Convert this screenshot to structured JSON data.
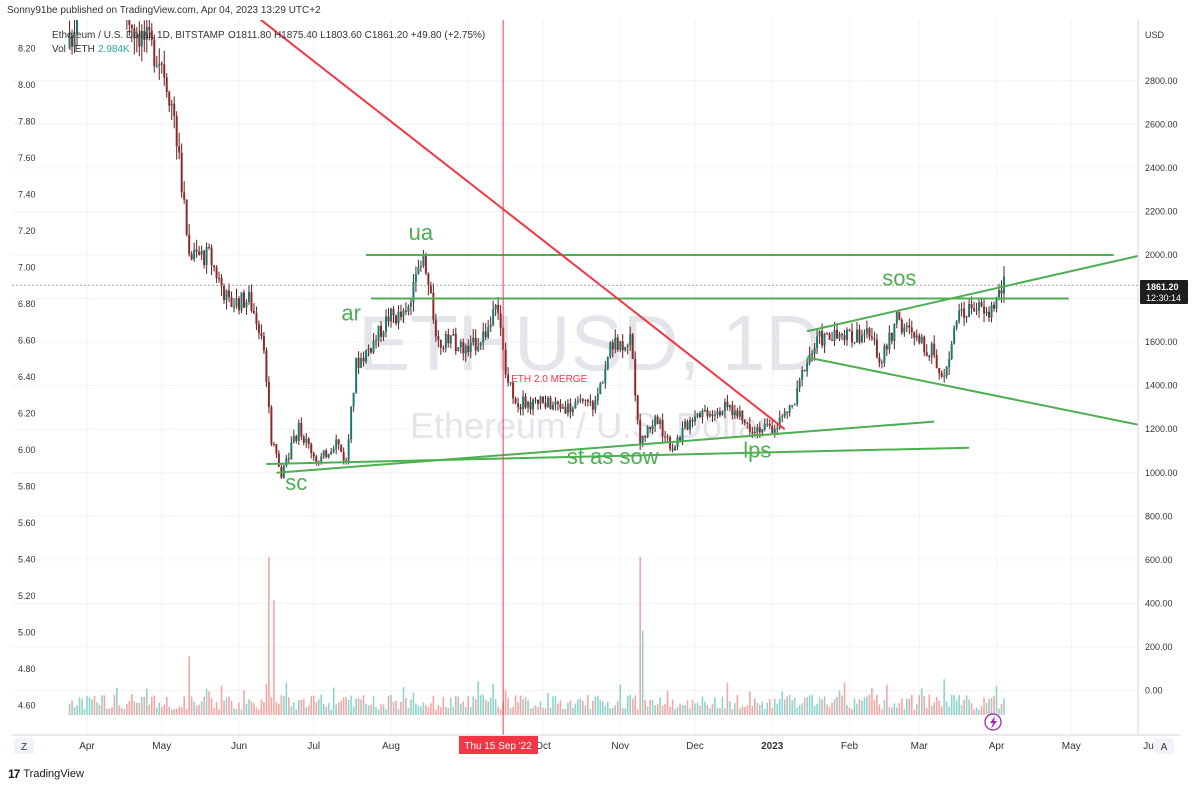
{
  "header": {
    "publisher_line": "Sonny91be published on TradingView.com, Apr 04, 2023 13:29 UTC+2"
  },
  "legend": {
    "symbol": "Ethereum / U.S. Dollar, 1D, BITSTAMP",
    "ohlc": "O1811.80  H1875.40  L1803.60  C1861.20  +49.80 (+2.75%)",
    "volume_label": "Vol · ETH",
    "volume_value": "2.984K"
  },
  "watermark": {
    "ticker": "ETHUSD, 1D",
    "name": "Ethereum / U.S. Dollar"
  },
  "colors": {
    "up": "#26a69a",
    "down": "#ef5350",
    "candle_body": "#8b2a2a",
    "annotation_green": "#4caf50",
    "trendline_red": "#f23645",
    "marker_red": "#f23645"
  },
  "price_label": {
    "price": "1861.20",
    "countdown": "12:30:14"
  },
  "crosshair_date": "Thu 15 Sep '22",
  "footer": {
    "brand": "TradingView",
    "zoom_left": "Z",
    "zoom_right": "A"
  },
  "chart_data": {
    "type": "candlestick",
    "currency_label": "USD",
    "right_axis_ticks": [
      2800,
      2600,
      2400,
      2200,
      2000,
      1800,
      1600,
      1400,
      1200,
      1000,
      800,
      600,
      400,
      200,
      0
    ],
    "right_axis_labels": [
      "2800.00",
      "2600.00",
      "2400.00",
      "2200.00",
      "2000.00",
      "1800.00",
      "1600.00",
      "1400.00",
      "1200.00",
      "1000.00",
      "800.00",
      "600.00",
      "400.00",
      "200.00",
      "0.00"
    ],
    "left_axis_labels": [
      "8.20",
      "8.00",
      "7.80",
      "7.60",
      "7.40",
      "7.20",
      "7.00",
      "6.80",
      "6.60",
      "6.40",
      "6.20",
      "6.00",
      "5.80",
      "5.60",
      "5.40",
      "5.20",
      "5.00",
      "4.80",
      "4.60"
    ],
    "left_axis_values": [
      8.2,
      8.0,
      7.8,
      7.6,
      7.4,
      7.2,
      7.0,
      6.8,
      6.6,
      6.4,
      6.2,
      6.0,
      5.8,
      5.6,
      5.4,
      5.2,
      5.0,
      4.8,
      4.6
    ],
    "x_axis_labels": [
      "Apr",
      "May",
      "Jun",
      "Jul",
      "Aug",
      "Sep",
      "Oct",
      "Nov",
      "Dec",
      "2023",
      "Feb",
      "Mar",
      "Apr",
      "May",
      "Ju"
    ],
    "x_axis_dates": [
      "2022-04-01",
      "2022-05-01",
      "2022-06-01",
      "2022-07-01",
      "2022-08-01",
      "2022-09-01",
      "2022-10-01",
      "2022-11-01",
      "2022-12-01",
      "2023-01-01",
      "2023-02-01",
      "2023-03-01",
      "2023-04-01",
      "2023-05-01",
      "2023-06-01"
    ],
    "price_path": [
      [
        "2022-03-25",
        2950
      ],
      [
        "2022-04-03",
        3500
      ],
      [
        "2022-04-10",
        3250
      ],
      [
        "2022-04-20",
        3050
      ],
      [
        "2022-05-01",
        2900
      ],
      [
        "2022-05-06",
        2650
      ],
      [
        "2022-05-12",
        2000
      ],
      [
        "2022-05-20",
        2000
      ],
      [
        "2022-05-28",
        1780
      ],
      [
        "2022-06-05",
        1800
      ],
      [
        "2022-06-10",
        1650
      ],
      [
        "2022-06-14",
        1150
      ],
      [
        "2022-06-18",
        1000
      ],
      [
        "2022-06-25",
        1200
      ],
      [
        "2022-07-03",
        1050
      ],
      [
        "2022-07-10",
        1150
      ],
      [
        "2022-07-14",
        1050
      ],
      [
        "2022-07-18",
        1500
      ],
      [
        "2022-07-25",
        1600
      ],
      [
        "2022-07-31",
        1720
      ],
      [
        "2022-08-07",
        1720
      ],
      [
        "2022-08-14",
        1980
      ],
      [
        "2022-08-20",
        1600
      ],
      [
        "2022-08-26",
        1600
      ],
      [
        "2022-09-01",
        1560
      ],
      [
        "2022-09-08",
        1650
      ],
      [
        "2022-09-13",
        1750
      ],
      [
        "2022-09-16",
        1450
      ],
      [
        "2022-09-21",
        1320
      ],
      [
        "2022-10-01",
        1320
      ],
      [
        "2022-10-13",
        1300
      ],
      [
        "2022-10-22",
        1320
      ],
      [
        "2022-10-28",
        1570
      ],
      [
        "2022-11-05",
        1620
      ],
      [
        "2022-11-09",
        1150
      ],
      [
        "2022-11-15",
        1250
      ],
      [
        "2022-11-22",
        1120
      ],
      [
        "2022-12-01",
        1280
      ],
      [
        "2022-12-15",
        1300
      ],
      [
        "2022-12-22",
        1220
      ],
      [
        "2023-01-01",
        1200
      ],
      [
        "2023-01-10",
        1320
      ],
      [
        "2023-01-14",
        1500
      ],
      [
        "2023-01-20",
        1620
      ],
      [
        "2023-02-01",
        1620
      ],
      [
        "2023-02-07",
        1650
      ],
      [
        "2023-02-14",
        1520
      ],
      [
        "2023-02-20",
        1700
      ],
      [
        "2023-02-28",
        1610
      ],
      [
        "2023-03-07",
        1550
      ],
      [
        "2023-03-10",
        1430
      ],
      [
        "2023-03-16",
        1690
      ],
      [
        "2023-03-23",
        1780
      ],
      [
        "2023-03-28",
        1720
      ],
      [
        "2023-04-04",
        1861.2
      ]
    ],
    "horizontal_lines": [
      {
        "price": 2000,
        "from": "2022-07-22",
        "to": "2023-05-18"
      },
      {
        "price": 1800,
        "from": "2022-07-24",
        "to": "2023-04-30"
      }
    ],
    "trend_lines": [
      {
        "color_key": "trendline_red",
        "from": [
          "2022-05-05",
          3400
        ],
        "to": [
          "2023-01-06",
          1200
        ]
      },
      {
        "color_key": "annotation_green",
        "from": [
          "2022-06-12",
          1040
        ],
        "to": [
          "2023-03-21",
          1115
        ]
      },
      {
        "color_key": "annotation_green",
        "from": [
          "2022-06-16",
          1000
        ],
        "to": [
          "2023-03-07",
          1235
        ]
      },
      {
        "color_key": "annotation_green",
        "from": [
          "2023-01-15",
          1650
        ],
        "to": [
          "2023-06-10",
          2030
        ]
      },
      {
        "color_key": "annotation_green",
        "from": [
          "2023-01-15",
          1530
        ],
        "to": [
          "2023-06-10",
          1190
        ]
      }
    ],
    "vertical_marker": {
      "date": "2022-09-15",
      "label": "ETH 2.0 MERGE"
    },
    "annotations": [
      {
        "text": "ua",
        "date": "2022-08-13",
        "price": 2070
      },
      {
        "text": "ar",
        "date": "2022-07-16",
        "price": 1700
      },
      {
        "text": "sc",
        "date": "2022-06-24",
        "price": 920
      },
      {
        "text": "st as sow",
        "date": "2022-10-29",
        "price": 1040
      },
      {
        "text": "lps",
        "date": "2022-12-26",
        "price": 1070
      },
      {
        "text": "sos",
        "date": "2023-02-21",
        "price": 1860
      }
    ],
    "volume_spikes": [
      {
        "date": "2022-06-13",
        "value": 620
      },
      {
        "date": "2022-06-15",
        "value": 450
      },
      {
        "date": "2022-05-12",
        "value": 230
      },
      {
        "date": "2022-11-09",
        "value": 620
      },
      {
        "date": "2022-11-10",
        "value": 330
      },
      {
        "date": "2023-03-11",
        "value": 140
      }
    ],
    "last_price": 1861.2
  }
}
